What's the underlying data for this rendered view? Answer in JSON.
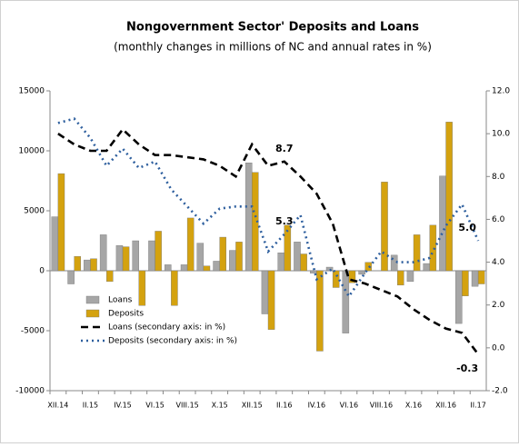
{
  "chart_data": {
    "type": "bar_line",
    "title": "Nongovernment Sector' Deposits and Loans",
    "subtitle": "(monthly changes in millions of NC and annual rates in %)",
    "categories": [
      "XII.14",
      null,
      "II.15",
      null,
      "IV.15",
      null,
      "VI.15",
      null,
      "VIII.15",
      null,
      "X.15",
      null,
      "XII.15",
      null,
      "II.16",
      null,
      "IV.16",
      null,
      "VI.16",
      null,
      "VIII.16",
      null,
      "X.16",
      null,
      "XII.16",
      null,
      "II.17"
    ],
    "series": [
      {
        "name": "Loans",
        "kind": "bar",
        "color": "#a6a6a6",
        "values": [
          4500,
          -1100,
          900,
          3000,
          2100,
          2500,
          2500,
          500,
          500,
          2300,
          800,
          1700,
          9000,
          -3600,
          1500,
          2400,
          -200,
          300,
          -5200,
          -300,
          0,
          1300,
          -900,
          600,
          7900,
          -4400,
          -1300
        ]
      },
      {
        "name": "Deposits",
        "kind": "bar",
        "color": "#d4a20f",
        "values": [
          8100,
          1200,
          1000,
          -900,
          2000,
          -2900,
          3300,
          -2900,
          4400,
          400,
          2800,
          2400,
          8200,
          -4900,
          3800,
          1400,
          -6700,
          -1400,
          -1000,
          700,
          7400,
          -1200,
          3000,
          3800,
          12400,
          -2100,
          -1100
        ]
      },
      {
        "name": "Loans (secondary axis: in %)",
        "kind": "line",
        "axis": "y2",
        "color": "#000000",
        "dash": "8,5",
        "values": [
          10.0,
          9.5,
          9.2,
          9.2,
          10.2,
          9.5,
          9.0,
          9.0,
          8.9,
          8.8,
          8.5,
          8.0,
          9.5,
          8.5,
          8.7,
          8.0,
          7.2,
          5.8,
          3.2,
          3.0,
          2.7,
          2.4,
          1.8,
          1.3,
          0.9,
          0.7,
          -0.3
        ],
        "value_labels": [
          null,
          null,
          null,
          null,
          null,
          null,
          null,
          null,
          null,
          null,
          null,
          null,
          null,
          null,
          "8.7",
          null,
          null,
          null,
          null,
          null,
          null,
          null,
          null,
          null,
          null,
          null,
          "-0.3"
        ]
      },
      {
        "name": "Deposits (secondary axis: in %)",
        "kind": "line",
        "axis": "y2",
        "color": "#2e5f9e",
        "dash": "2,4",
        "values": [
          10.5,
          10.7,
          9.8,
          8.5,
          9.3,
          8.4,
          8.7,
          7.4,
          6.6,
          5.8,
          6.5,
          6.6,
          6.6,
          4.5,
          5.3,
          6.2,
          3.2,
          3.7,
          2.4,
          3.5,
          4.5,
          4.0,
          4.0,
          4.2,
          5.7,
          6.7,
          5.0
        ],
        "value_labels": [
          null,
          null,
          null,
          null,
          null,
          null,
          null,
          null,
          null,
          null,
          null,
          null,
          null,
          null,
          "5.3",
          null,
          null,
          null,
          null,
          null,
          null,
          null,
          null,
          null,
          null,
          null,
          "5.0"
        ]
      }
    ],
    "ylim": [
      -10000,
      15000
    ],
    "yticks": [
      -10000,
      -5000,
      0,
      5000,
      10000,
      15000
    ],
    "y2lim": [
      -2,
      12
    ],
    "y2ticks": [
      {
        "value": -2,
        "label": "-2.0"
      },
      {
        "value": 0,
        "label": "0.0"
      },
      {
        "value": 2,
        "label": "2.0"
      },
      {
        "value": 4,
        "label": "4.0"
      },
      {
        "value": 6,
        "label": "6.0"
      },
      {
        "value": 8,
        "label": "8.0"
      },
      {
        "value": 10,
        "label": "10.0"
      },
      {
        "value": 12,
        "label": "12.0"
      }
    ],
    "legend": "lower left"
  }
}
